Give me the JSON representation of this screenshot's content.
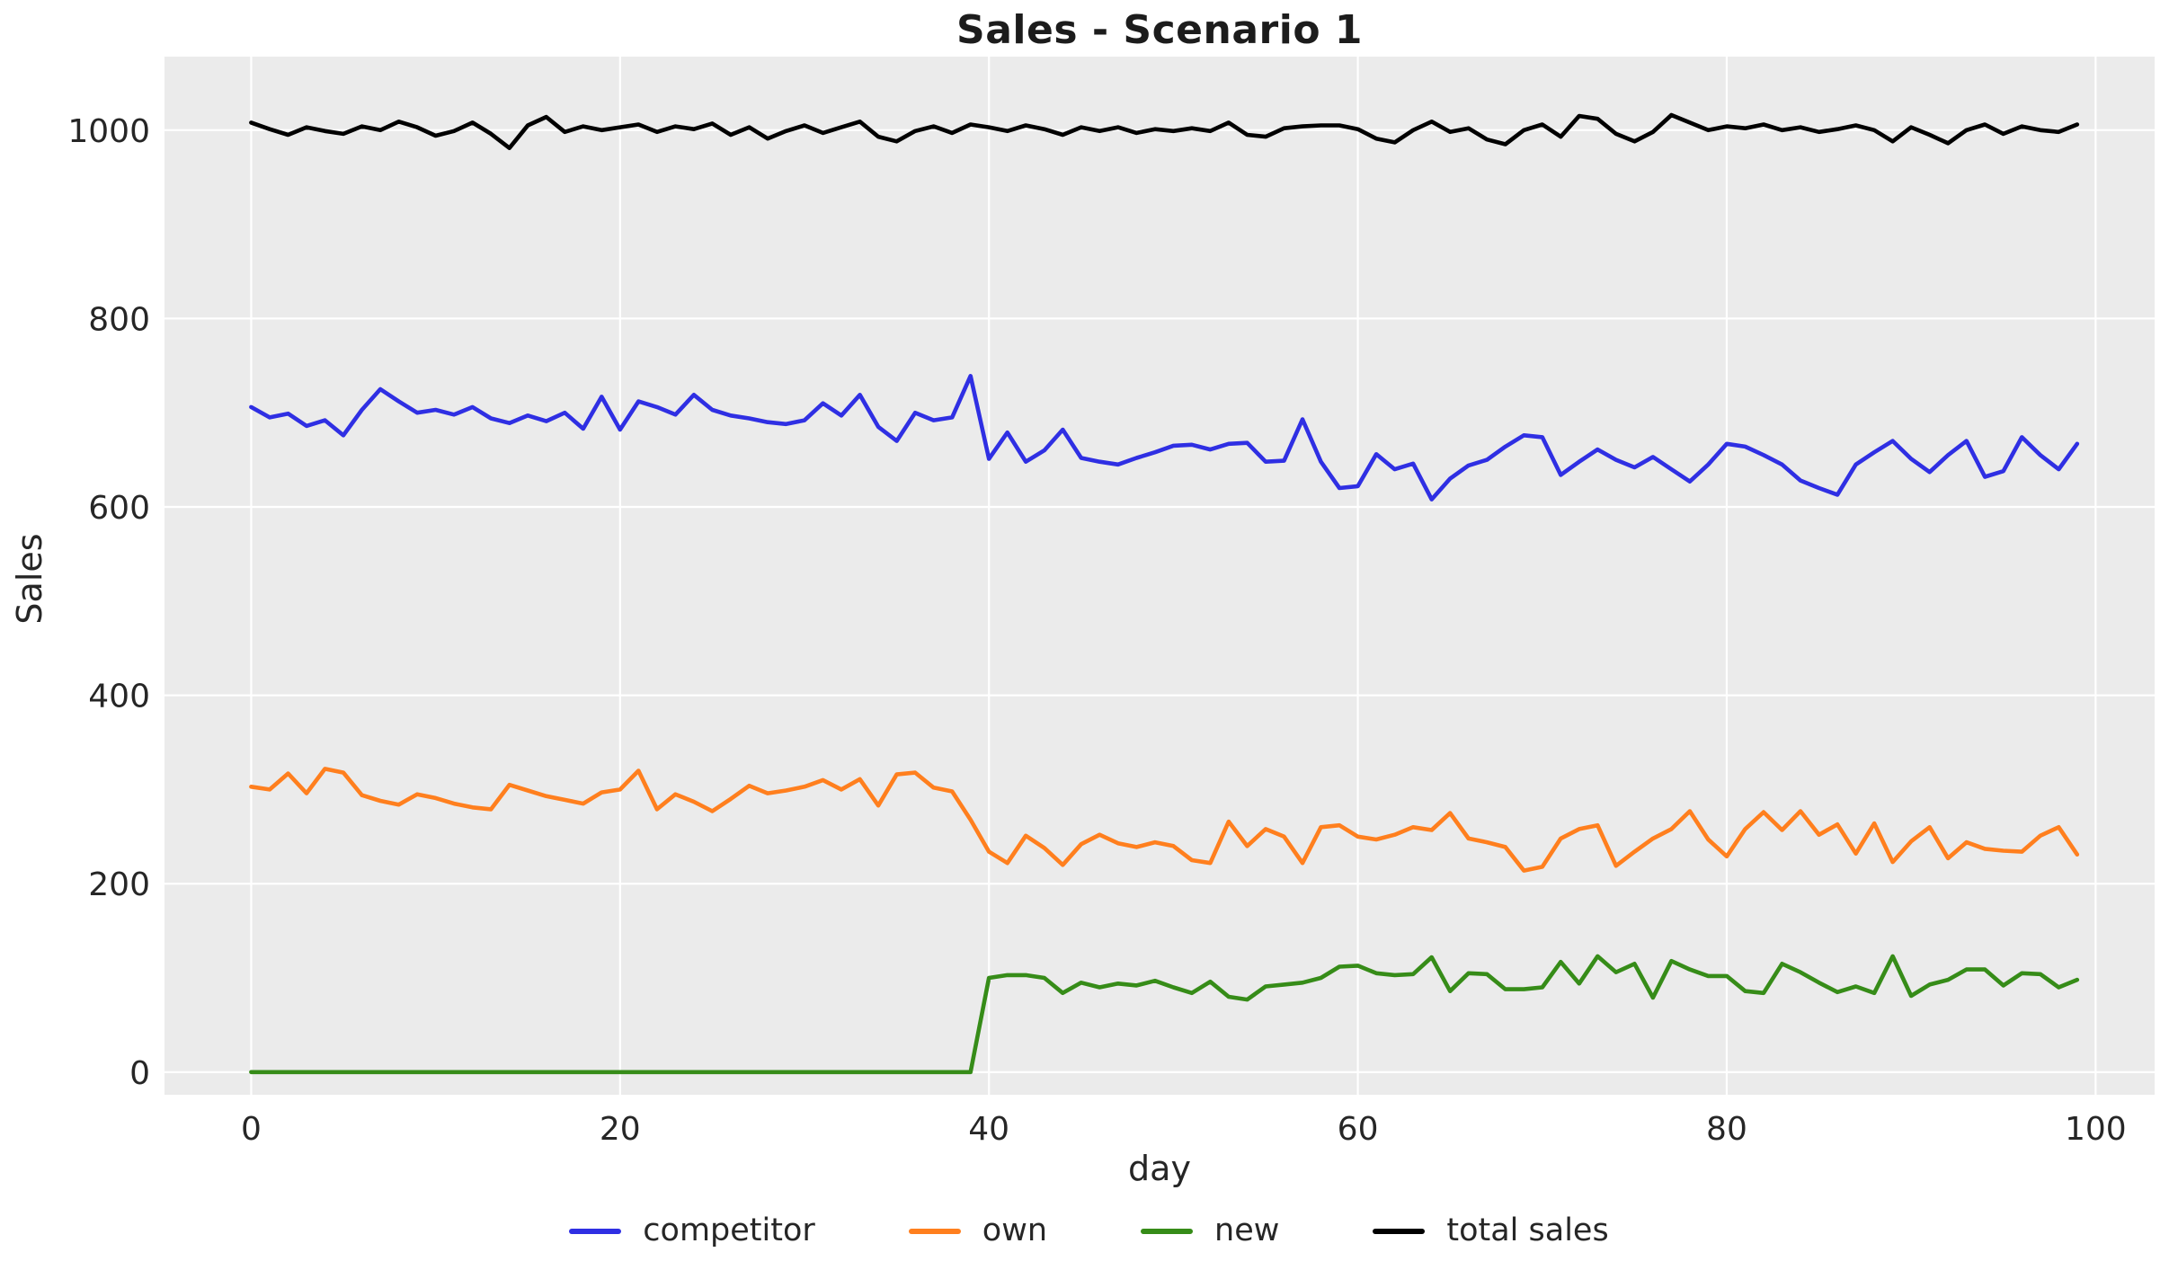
{
  "title": "Sales - Scenario 1",
  "style": {
    "figure_bg": "#ffffff",
    "plot_bg": "#ebebeb",
    "grid_color": "#ffffff",
    "text_color": "#262626",
    "title_color": "#1c1c1c"
  },
  "chart_data": {
    "type": "line",
    "title": "Sales - Scenario 1",
    "xlabel": "day",
    "ylabel": "Sales",
    "grid": true,
    "legend_position": "bottom center",
    "x_ticks": [
      0,
      20,
      40,
      60,
      80,
      100
    ],
    "y_ticks": [
      0,
      200,
      400,
      600,
      800,
      1000
    ],
    "xlim": [
      -4.7,
      103.2
    ],
    "ylim": [
      -24,
      1078
    ],
    "x": [
      0,
      1,
      2,
      3,
      4,
      5,
      6,
      7,
      8,
      9,
      10,
      11,
      12,
      13,
      14,
      15,
      16,
      17,
      18,
      19,
      20,
      21,
      22,
      23,
      24,
      25,
      26,
      27,
      28,
      29,
      30,
      31,
      32,
      33,
      34,
      35,
      36,
      37,
      38,
      39,
      40,
      41,
      42,
      43,
      44,
      45,
      46,
      47,
      48,
      49,
      50,
      51,
      52,
      53,
      54,
      55,
      56,
      57,
      58,
      59,
      60,
      61,
      62,
      63,
      64,
      65,
      66,
      67,
      68,
      69,
      70,
      71,
      72,
      73,
      74,
      75,
      76,
      77,
      78,
      79,
      80,
      81,
      82,
      83,
      84,
      85,
      86,
      87,
      88,
      89,
      90,
      91,
      92,
      93,
      94,
      95,
      96,
      97,
      98,
      99
    ],
    "series": [
      {
        "name": "competitor",
        "color": "#2f2fe3",
        "values": [
          706,
          695,
          699,
          686,
          692,
          676,
          703,
          725,
          712,
          700,
          703,
          698,
          706,
          694,
          689,
          697,
          691,
          700,
          683,
          717,
          682,
          712,
          706,
          698,
          719,
          703,
          697,
          694,
          690,
          688,
          692,
          710,
          697,
          719,
          685,
          670,
          700,
          692,
          695,
          739,
          651,
          679,
          648,
          660,
          682,
          652,
          648,
          645,
          652,
          658,
          665,
          666,
          661,
          667,
          668,
          648,
          649,
          693,
          648,
          620,
          622,
          656,
          640,
          646,
          608,
          630,
          644,
          650,
          664,
          676,
          674,
          634,
          648,
          661,
          650,
          642,
          653,
          640,
          627,
          645,
          667,
          664,
          655,
          645,
          628,
          620,
          613,
          645,
          658,
          670,
          651,
          637,
          655,
          670,
          632,
          638,
          674,
          655,
          640,
          667
        ]
      },
      {
        "name": "own",
        "color": "#ff7f1e",
        "values": [
          303,
          300,
          317,
          296,
          322,
          318,
          294,
          288,
          284,
          295,
          291,
          285,
          281,
          279,
          305,
          299,
          293,
          289,
          285,
          297,
          300,
          320,
          279,
          295,
          287,
          277,
          290,
          304,
          296,
          299,
          303,
          310,
          300,
          311,
          283,
          316,
          318,
          302,
          298,
          268,
          234,
          222,
          251,
          238,
          220,
          242,
          252,
          243,
          239,
          244,
          240,
          225,
          222,
          266,
          240,
          258,
          250,
          222,
          260,
          262,
          250,
          247,
          252,
          260,
          257,
          275,
          248,
          244,
          239,
          214,
          218,
          248,
          258,
          262,
          219,
          234,
          248,
          258,
          277,
          247,
          229,
          258,
          276,
          257,
          277,
          252,
          263,
          232,
          264,
          223,
          245,
          260,
          227,
          244,
          237,
          235,
          234,
          251,
          260,
          231
        ]
      },
      {
        "name": "new",
        "color": "#368c18",
        "values": [
          0,
          0,
          0,
          0,
          0,
          0,
          0,
          0,
          0,
          0,
          0,
          0,
          0,
          0,
          0,
          0,
          0,
          0,
          0,
          0,
          0,
          0,
          0,
          0,
          0,
          0,
          0,
          0,
          0,
          0,
          0,
          0,
          0,
          0,
          0,
          0,
          0,
          0,
          0,
          0,
          100,
          103,
          103,
          100,
          84,
          95,
          90,
          94,
          92,
          97,
          90,
          84,
          96,
          80,
          77,
          91,
          93,
          95,
          100,
          112,
          113,
          105,
          103,
          104,
          122,
          86,
          105,
          104,
          88,
          88,
          90,
          117,
          94,
          123,
          106,
          115,
          79,
          118,
          109,
          102,
          102,
          86,
          84,
          115,
          106,
          95,
          85,
          91,
          84,
          123,
          81,
          93,
          98,
          109,
          109,
          92,
          105,
          104,
          90,
          98
        ]
      },
      {
        "name": "total sales",
        "color": "#000000",
        "values": [
          1008,
          1001,
          995,
          1003,
          999,
          996,
          1004,
          1000,
          1009,
          1003,
          994,
          999,
          1008,
          996,
          981,
          1005,
          1014,
          998,
          1004,
          1000,
          1003,
          1006,
          998,
          1004,
          1001,
          1007,
          995,
          1003,
          991,
          999,
          1005,
          997,
          1003,
          1009,
          993,
          988,
          999,
          1004,
          997,
          1006,
          1003,
          999,
          1005,
          1001,
          995,
          1003,
          999,
          1003,
          997,
          1001,
          999,
          1002,
          999,
          1008,
          995,
          993,
          1002,
          1004,
          1005,
          1005,
          1001,
          991,
          987,
          1000,
          1009,
          998,
          1002,
          990,
          985,
          1000,
          1006,
          993,
          1015,
          1012,
          996,
          988,
          998,
          1016,
          1008,
          1000,
          1004,
          1002,
          1006,
          1000,
          1003,
          998,
          1001,
          1005,
          1000,
          988,
          1003,
          995,
          986,
          1000,
          1006,
          996,
          1004,
          1000,
          998,
          1006
        ]
      }
    ]
  }
}
